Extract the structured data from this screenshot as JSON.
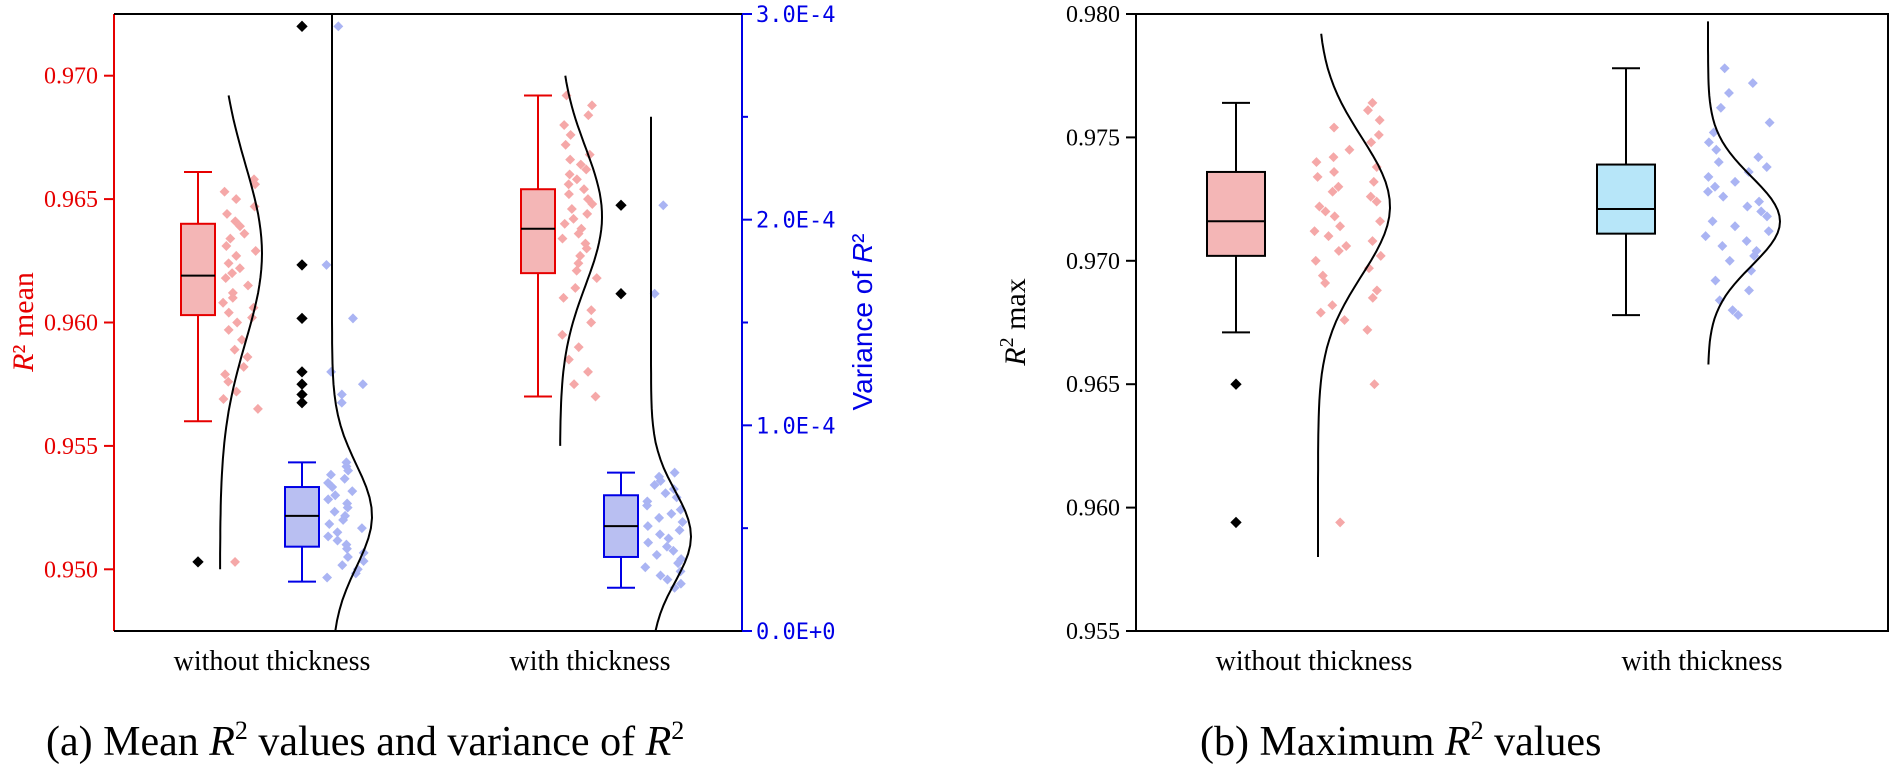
{
  "colors": {
    "red": "#e60000",
    "blue": "#0000e6",
    "red_fill": "#f4b6b6",
    "blue_fill": "#b9bff2",
    "cyan_fill": "#b7e6f9",
    "red_dot": "#f5a8a8",
    "blue_dot": "#aab4f3",
    "black": "#000000"
  },
  "chart_data": [
    {
      "type": "box",
      "panel": "a",
      "caption": {
        "prefix": "(a)  Mean ",
        "r": "R",
        "sup": "2",
        "middle": " values and variance of ",
        "r2": "R",
        "sup2": "2"
      },
      "categories": [
        "without thickness",
        "with thickness"
      ],
      "left_axis": {
        "label_r": "R",
        "label_rest": "² mean",
        "ylim": [
          0.9475,
          0.9725
        ],
        "ticks": [
          "0.950",
          "0.955",
          "0.960",
          "0.965",
          "0.970"
        ],
        "color": "#e60000"
      },
      "right_axis": {
        "label_prefix": "Variance of ",
        "label_r": "R",
        "label_sup": "²",
        "ylim": [
          0,
          0.0003
        ],
        "ticks": [
          "0.0E+0",
          "1.0E-4",
          "2.0E-4",
          "3.0E-4"
        ],
        "color": "#0000e6"
      },
      "series": [
        {
          "name": "",
          "axis": "left",
          "boxes": [
            {
              "category": "without thickness",
              "whisker_low": 0.956,
              "q1": 0.9603,
              "median": 0.9619,
              "q3": 0.964,
              "whisker_high": 0.9661,
              "outliers": [
                0.9503
              ],
              "points": [
                0.9658,
                0.9656,
                0.9653,
                0.965,
                0.9647,
                0.9644,
                0.9641,
                0.9639,
                0.9636,
                0.9634,
                0.9631,
                0.9629,
                0.9627,
                0.9624,
                0.9622,
                0.962,
                0.9618,
                0.9615,
                0.9612,
                0.961,
                0.9608,
                0.9606,
                0.9604,
                0.9602,
                0.96,
                0.9597,
                0.9593,
                0.9589,
                0.9586,
                0.9582,
                0.9579,
                0.9576,
                0.9572,
                0.9569,
                0.9565,
                0.9503
              ]
            },
            {
              "category": "with thickness",
              "whisker_low": 0.957,
              "q1": 0.962,
              "median": 0.9638,
              "q3": 0.9654,
              "whisker_high": 0.9692,
              "outliers": [],
              "points": [
                0.9692,
                0.9688,
                0.9684,
                0.968,
                0.9676,
                0.9672,
                0.9668,
                0.9666,
                0.9664,
                0.9662,
                0.966,
                0.9658,
                0.9656,
                0.9654,
                0.9652,
                0.965,
                0.9648,
                0.9646,
                0.9644,
                0.9642,
                0.964,
                0.9638,
                0.9636,
                0.9634,
                0.9632,
                0.963,
                0.9627,
                0.9624,
                0.9621,
                0.9618,
                0.9614,
                0.961,
                0.9605,
                0.96,
                0.9595,
                0.959,
                0.9585,
                0.958,
                0.9575,
                0.957
              ]
            }
          ],
          "density": [
            {
              "category": "without thickness",
              "ylim": [
                0.95,
                0.9692
              ],
              "peak": 0.9628,
              "spread": 0.0036
            },
            {
              "category": "with thickness",
              "ylim": [
                0.955,
                0.97
              ],
              "peak": 0.9643,
              "spread": 0.0028
            }
          ]
        },
        {
          "name": "",
          "axis": "right",
          "boxes": [
            {
              "category": "without thickness",
              "whisker_low": 2.4e-05,
              "q1": 4.1e-05,
              "median": 5.6e-05,
              "q3": 7e-05,
              "whisker_high": 8.2e-05,
              "outliers": [
                0.000294,
                0.000178,
                0.000152,
                0.000126,
                0.00012,
                0.000115,
                0.000111
              ],
              "points": [
                0.000294,
                0.000178,
                0.000152,
                0.000126,
                0.00012,
                0.000115,
                0.000111,
                8.2e-05,
                8e-05,
                7.8e-05,
                7.6e-05,
                7.4e-05,
                7.2e-05,
                7e-05,
                6.8e-05,
                6.6e-05,
                6.4e-05,
                6.2e-05,
                6e-05,
                5.8e-05,
                5.6e-05,
                5.4e-05,
                5.2e-05,
                5e-05,
                4.8e-05,
                4.6e-05,
                4.4e-05,
                4.2e-05,
                4e-05,
                3.8e-05,
                3.6e-05,
                3.4e-05,
                3.2e-05,
                3e-05,
                2.8e-05,
                2.6e-05
              ]
            },
            {
              "category": "with thickness",
              "whisker_low": 2.1e-05,
              "q1": 3.6e-05,
              "median": 5.1e-05,
              "q3": 6.6e-05,
              "whisker_high": 7.7e-05,
              "outliers": [
                0.000207,
                0.000164
              ],
              "points": [
                0.000207,
                0.000164,
                7.7e-05,
                7.5e-05,
                7.3e-05,
                7.1e-05,
                6.9e-05,
                6.7e-05,
                6.5e-05,
                6.3e-05,
                6.1e-05,
                5.9e-05,
                5.7e-05,
                5.5e-05,
                5.3e-05,
                5.1e-05,
                4.9e-05,
                4.7e-05,
                4.5e-05,
                4.3e-05,
                4.1e-05,
                3.9e-05,
                3.7e-05,
                3.5e-05,
                3.3e-05,
                3.1e-05,
                2.9e-05,
                2.7e-05,
                2.5e-05,
                2.3e-05,
                2.1e-05
              ]
            }
          ],
          "density": [
            {
              "category": "without thickness",
              "ylim": [
                0,
                0.0003
              ],
              "peak": 5.6e-05,
              "spread": 2.5e-05
            },
            {
              "category": "with thickness",
              "ylim": [
                0,
                0.00025
              ],
              "peak": 4.6e-05,
              "spread": 2.2e-05
            }
          ]
        }
      ]
    },
    {
      "type": "box",
      "panel": "b",
      "caption": {
        "prefix": "(b)  Maximum ",
        "r": "R",
        "sup": "2",
        "middle": " values"
      },
      "categories": [
        "without thickness",
        "with thickness"
      ],
      "left_axis": {
        "label_r": "R",
        "label_rest": " max",
        "label_sup": "2",
        "ylim": [
          0.955,
          0.98
        ],
        "ticks": [
          "0.955",
          "0.960",
          "0.965",
          "0.970",
          "0.975",
          "0.980"
        ],
        "color": "#000000"
      },
      "series": [
        {
          "name": "",
          "boxes": [
            {
              "category": "without thickness",
              "whisker_low": 0.9671,
              "q1": 0.9702,
              "median": 0.9716,
              "q3": 0.9736,
              "whisker_high": 0.9764,
              "outliers": [
                0.965,
                0.9594
              ],
              "points": [
                0.9764,
                0.9761,
                0.9757,
                0.9754,
                0.9751,
                0.9748,
                0.9745,
                0.9742,
                0.974,
                0.9738,
                0.9736,
                0.9734,
                0.9732,
                0.973,
                0.9728,
                0.9726,
                0.9724,
                0.9722,
                0.972,
                0.9718,
                0.9716,
                0.9714,
                0.9712,
                0.971,
                0.9708,
                0.9706,
                0.9704,
                0.9702,
                0.97,
                0.9697,
                0.9694,
                0.9691,
                0.9688,
                0.9685,
                0.9682,
                0.9679,
                0.9676,
                0.9672,
                0.965,
                0.9594
              ]
            },
            {
              "category": "with thickness",
              "whisker_low": 0.9678,
              "q1": 0.9711,
              "median": 0.9721,
              "q3": 0.9739,
              "whisker_high": 0.9778,
              "outliers": [],
              "points": [
                0.9778,
                0.9772,
                0.9768,
                0.9762,
                0.9756,
                0.9752,
                0.9748,
                0.9745,
                0.9742,
                0.974,
                0.9738,
                0.9736,
                0.9734,
                0.9732,
                0.973,
                0.9728,
                0.9726,
                0.9724,
                0.9722,
                0.972,
                0.9718,
                0.9716,
                0.9714,
                0.9712,
                0.971,
                0.9708,
                0.9706,
                0.9704,
                0.9702,
                0.97,
                0.9696,
                0.9692,
                0.9688,
                0.9684,
                0.968,
                0.9678
              ]
            }
          ],
          "density": [
            {
              "category": "without thickness",
              "ylim": [
                0.958,
                0.9792
              ],
              "peak": 0.9722,
              "spread": 0.0028
            },
            {
              "category": "with thickness",
              "ylim": [
                0.9658,
                0.9797
              ],
              "peak": 0.9716,
              "spread": 0.0018
            }
          ]
        }
      ]
    }
  ]
}
